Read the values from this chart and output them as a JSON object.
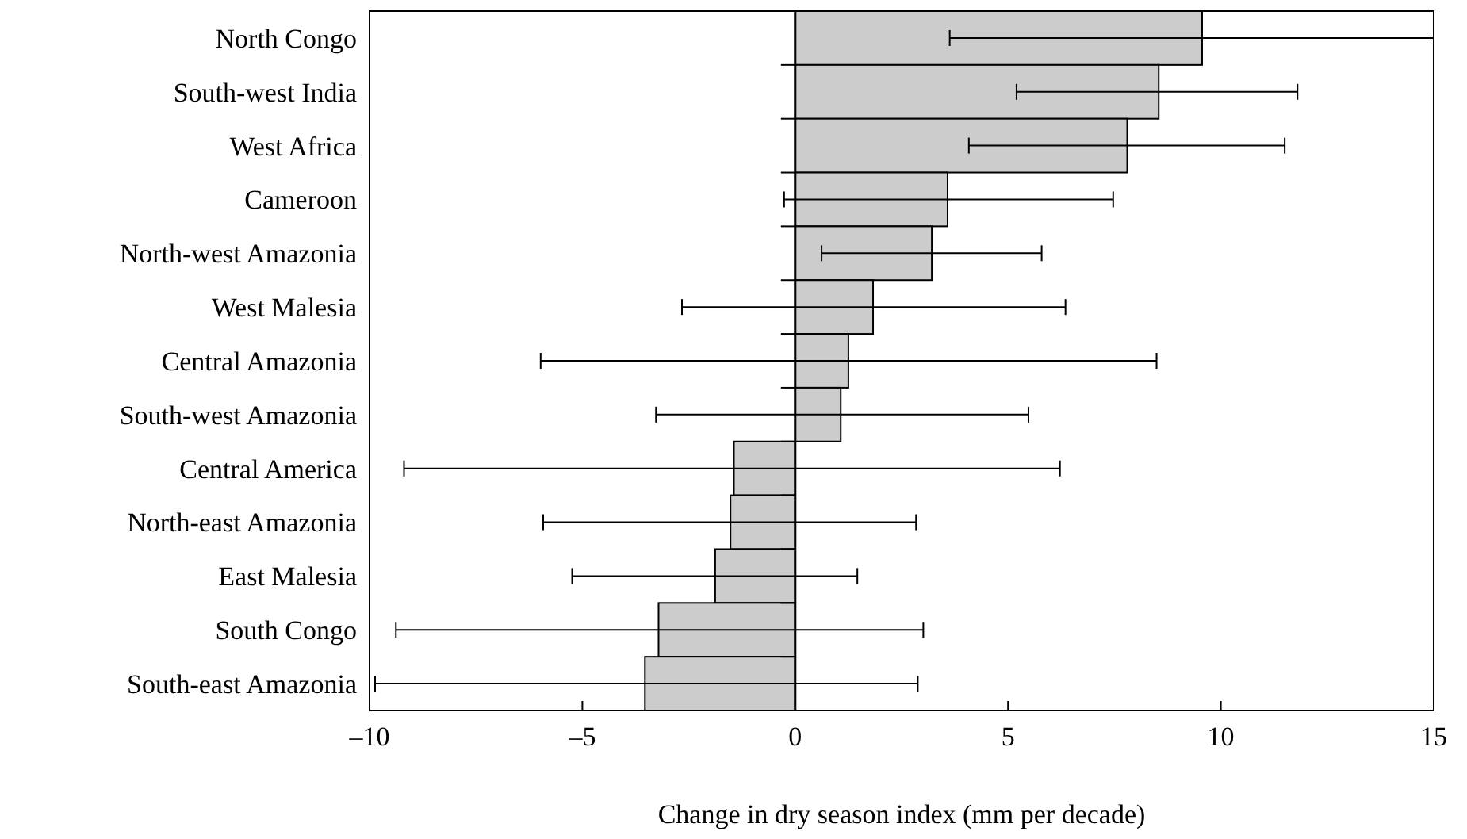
{
  "chart_data": {
    "type": "bar",
    "orientation": "horizontal",
    "xlabel": "Change in dry season index (mm per decade)",
    "categories": [
      "North Congo",
      "South-west India",
      "West Africa",
      "Cameroon",
      "North-west Amazonia",
      "West Malesia",
      "Central Amazonia",
      "South-west Amazonia",
      "Central America",
      "North-east Amazonia",
      "East Malesia",
      "South Congo",
      "South-east Amazonia"
    ],
    "values": [
      9.56,
      8.54,
      7.8,
      3.58,
      3.21,
      1.83,
      1.25,
      1.07,
      -1.44,
      -1.52,
      -1.88,
      -3.21,
      -3.53
    ],
    "errors": [
      [
        3.63,
        15
      ],
      [
        5.2,
        11.8
      ],
      [
        4.08,
        11.5
      ],
      [
        -0.26,
        7.47
      ],
      [
        0.62,
        5.79
      ],
      [
        -2.66,
        6.35
      ],
      [
        -5.98,
        8.49
      ],
      [
        -3.27,
        5.48
      ],
      [
        -9.19,
        6.22
      ],
      [
        -5.92,
        2.84
      ],
      [
        -5.24,
        1.46
      ],
      [
        -9.38,
        3.01
      ],
      [
        -9.87,
        2.88
      ]
    ],
    "color": "#cccccc",
    "xlim": [
      -10,
      15
    ],
    "xticks": [
      {
        "value": -10,
        "label": "–10"
      },
      {
        "value": -5,
        "label": "–5"
      },
      0,
      5,
      10,
      15
    ]
  }
}
